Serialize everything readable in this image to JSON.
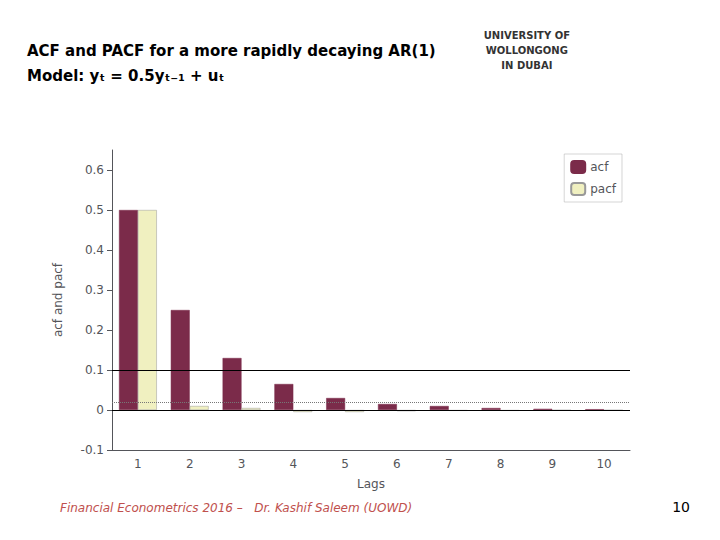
{
  "chart_data": {
    "type": "bar",
    "title": "ACF and PACF for a more rapidly decaying AR(1)",
    "subtitle": "Model: yₜ = 0.5yₜ₋₁ + uₜ",
    "categories": [
      "1",
      "2",
      "3",
      "4",
      "5",
      "6",
      "7",
      "8",
      "9",
      "10"
    ],
    "series": [
      {
        "name": "acf",
        "color": "#7B2B4A",
        "values": [
          0.5,
          0.25,
          0.13,
          0.065,
          0.03,
          0.015,
          0.01,
          0.005,
          0.003,
          0.002
        ]
      },
      {
        "name": "pacf",
        "color": "#F0F0C0",
        "values": [
          0.5,
          0.01,
          0.005,
          -0.005,
          -0.005,
          -0.003,
          -0.002,
          -0.002,
          -0.001,
          -0.001
        ]
      }
    ],
    "xlabel": "Lags",
    "ylabel": "acf and pacf",
    "ylim": [
      -0.1,
      0.65
    ],
    "yticks": [
      -0.1,
      0,
      0.1,
      0.2,
      0.3,
      0.4,
      0.5,
      0.6
    ],
    "grid": false,
    "legend": "upper right",
    "hlines": [
      {
        "y": 0.1,
        "color": "#000000",
        "line_style": "solid"
      },
      {
        "y": 0.02,
        "color": "#777777",
        "line_style": "dotted"
      },
      {
        "y": 0,
        "color": "#000000",
        "line_style": "solid"
      }
    ],
    "logo_text": "UNIVERSITY OF\nWOLLONGONG\nIN DUBAI",
    "footer": "Financial Econometrics 2016 –   Dr. Kashif Saleem (UOWD)",
    "footer_color": "#C0504D",
    "page_number": "10"
  }
}
